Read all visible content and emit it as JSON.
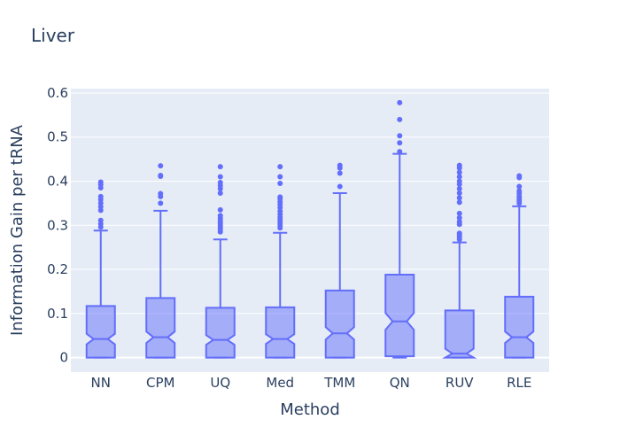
{
  "chart_data": {
    "type": "box",
    "title": "Liver",
    "xlabel": "Method",
    "ylabel": "Information Gain per tRNA",
    "ylim": [
      -0.033,
      0.61
    ],
    "yticks": [
      0,
      0.1,
      0.2,
      0.3,
      0.4,
      0.5,
      0.6
    ],
    "ytick_labels": [
      "0",
      "0.1",
      "0.2",
      "0.3",
      "0.4",
      "0.5",
      "0.6"
    ],
    "grid": true,
    "notched": true,
    "color": "#636efa",
    "fill": "rgba(99,110,250,0.5)",
    "background": "#e5ecf6",
    "categories": [
      "NN",
      "CPM",
      "UQ",
      "Med",
      "TMM",
      "QN",
      "RUV",
      "RLE"
    ],
    "boxes": [
      {
        "min": 0,
        "q1": 0,
        "median": 0.042,
        "q3": 0.117,
        "whisker_high": 0.288,
        "notch_low": 0.03,
        "notch_high": 0.054,
        "outliers": [
          0.296,
          0.303,
          0.311,
          0.334,
          0.342,
          0.35,
          0.358,
          0.365,
          0.385,
          0.392,
          0.398
        ]
      },
      {
        "min": 0,
        "q1": 0,
        "median": 0.046,
        "q3": 0.135,
        "whisker_high": 0.333,
        "notch_low": 0.033,
        "notch_high": 0.059,
        "outliers": [
          0.35,
          0.365,
          0.372,
          0.411,
          0.413,
          0.435
        ]
      },
      {
        "min": 0,
        "q1": 0,
        "median": 0.04,
        "q3": 0.113,
        "whisker_high": 0.268,
        "notch_low": 0.029,
        "notch_high": 0.051,
        "outliers": [
          0.285,
          0.29,
          0.295,
          0.3,
          0.305,
          0.31,
          0.316,
          0.322,
          0.335,
          0.373,
          0.383,
          0.39,
          0.397,
          0.41,
          0.433
        ]
      },
      {
        "min": 0,
        "q1": 0,
        "median": 0.042,
        "q3": 0.114,
        "whisker_high": 0.283,
        "notch_low": 0.031,
        "notch_high": 0.053,
        "outliers": [
          0.294,
          0.3,
          0.306,
          0.312,
          0.318,
          0.325,
          0.332,
          0.34,
          0.347,
          0.353,
          0.36,
          0.364,
          0.395,
          0.41,
          0.433
        ]
      },
      {
        "min": 0,
        "q1": 0,
        "median": 0.055,
        "q3": 0.152,
        "whisker_high": 0.373,
        "notch_low": 0.041,
        "notch_high": 0.069,
        "outliers": [
          0.388,
          0.418,
          0.43,
          0.436
        ]
      },
      {
        "min": 0,
        "q1": 0.003,
        "median": 0.082,
        "q3": 0.188,
        "whisker_high": 0.462,
        "notch_low": 0.063,
        "notch_high": 0.101,
        "outliers": [
          0.467,
          0.487,
          0.503,
          0.54,
          0.578
        ]
      },
      {
        "min": 0,
        "q1": 0,
        "median": 0.009,
        "q3": 0.107,
        "whisker_high": 0.261,
        "notch_low": 0.0,
        "notch_high": 0.02,
        "outliers": [
          0.268,
          0.273,
          0.278,
          0.282,
          0.302,
          0.308,
          0.317,
          0.327,
          0.352,
          0.362,
          0.373,
          0.383,
          0.393,
          0.4,
          0.41,
          0.42,
          0.43,
          0.436
        ]
      },
      {
        "min": 0,
        "q1": 0,
        "median": 0.046,
        "q3": 0.138,
        "whisker_high": 0.343,
        "notch_low": 0.033,
        "notch_high": 0.059,
        "outliers": [
          0.35,
          0.355,
          0.36,
          0.365,
          0.372,
          0.378,
          0.388,
          0.408,
          0.412
        ]
      }
    ]
  }
}
